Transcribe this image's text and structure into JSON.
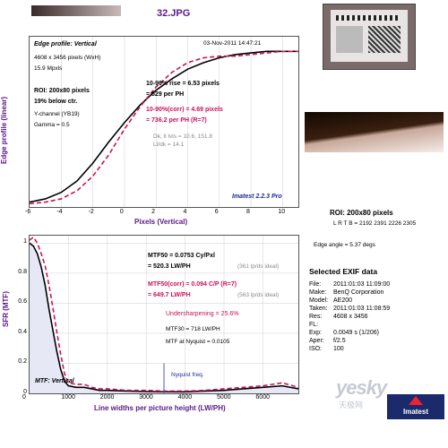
{
  "page_title": "32.JPG",
  "colors": {
    "purple": "#5b1a86",
    "magenta": "#c8145a",
    "grey": "#8a8a8a",
    "panel_blue": "#e6e8f6"
  },
  "edge_profile": {
    "header": "Edge profile: Vertical",
    "date": "03-Nov-2011 14:47:21",
    "info": [
      "4608 x 3456 pixels (WxH)",
      "15.9 Mpxls"
    ],
    "roi": "ROI: 200x80 pixels",
    "below": "19% below ctr.",
    "channel": "Y-channel  (YB19)",
    "gamma": "Gamma = 0.5",
    "rise": "10-90% rise = 6.53 pixels",
    "rise_ph": "= 529 per PH",
    "rise_corr": "10-90%(corr) = 4.69 pixels",
    "rise_corr_ph": "= 736.2 per PH  (R=7)",
    "dk": "Dk, lt lvls = 10.6, 151.8",
    "ltdk": "Lt/dk = 14.1",
    "imatest": "Imatest 2.2.3 Pro",
    "ylabel": "Edge profile (linear)",
    "xlabel": "Pixels (Vertical)",
    "xticks": [
      "-6",
      "-4",
      "-2",
      "0",
      "2",
      "4",
      "6",
      "8",
      "10"
    ]
  },
  "mtf": {
    "mtf50": "MTF50 = 0.0753 Cy/Pxl",
    "mtf50_lw": "= 520.3 LW/PH",
    "mtf50_ideal": "(361 lp/ds ideal)",
    "mtf50corr": "MTF50(corr) = 0.094 C/P  (R=7)",
    "mtf50corr_lw": "= 649.7 LW/PH",
    "mtf50corr_ideal": "(563 lp/ds ideal)",
    "undersharp": "Undersharpening = 25.6%",
    "mtf30": "MTF30 = 718 LW/PH",
    "nyq": "MTF at Nyquist = 0.0105",
    "nyq_label": "Nyquist freq.",
    "footer": "MTF: Vertical",
    "ylabel": "SFR (MTF)",
    "xlabel": "Line widths per picture height (LW/PH)",
    "xticks": [
      "0",
      "1000",
      "2000",
      "3000",
      "4000",
      "5000",
      "6000"
    ],
    "yticks": [
      "0",
      "0.2",
      "0.4",
      "0.6",
      "0.8",
      "1"
    ]
  },
  "right_panel": {
    "roi_title": "ROI: 200x80 pixels",
    "lrtb": "L R T B = 2192 2391   2226 2305",
    "edge_angle": "Edge angle = 5.37 degs",
    "exif_title": "Selected EXIF data",
    "exif": [
      [
        "File:",
        "2011:01:03 11:09:00"
      ],
      [
        "Make:",
        "BenQ Corporation"
      ],
      [
        "Model:",
        "AE200"
      ],
      [
        "Taken:",
        "2011:01:03 11:08:59"
      ],
      [
        "Res:",
        "4608 x 3456"
      ],
      [
        "FL:",
        ""
      ],
      [
        "Exp:",
        "0.0049 s  (1/206)"
      ],
      [
        "Aper:",
        "f/2.5"
      ],
      [
        "ISO:",
        "100"
      ]
    ],
    "watermark": "yesky",
    "watermark_sub": "天极网",
    "badge": "Imatest"
  },
  "chart_data": [
    {
      "type": "line",
      "title": "Edge profile: Vertical",
      "xlabel": "Pixels (Vertical)",
      "ylabel": "Edge profile (linear)",
      "xlim": [
        -6,
        11
      ],
      "series": [
        {
          "name": "10-90% rise",
          "x": [
            -6,
            -5,
            -4,
            -3,
            -2,
            -1,
            0,
            1,
            2,
            3,
            4,
            5,
            6,
            7,
            8,
            9,
            10,
            11
          ],
          "values": [
            0.03,
            0.05,
            0.09,
            0.16,
            0.27,
            0.4,
            0.52,
            0.63,
            0.72,
            0.79,
            0.85,
            0.89,
            0.92,
            0.94,
            0.95,
            0.96,
            0.96,
            0.96
          ]
        },
        {
          "name": "10-90%(corr)",
          "x": [
            -6,
            -5,
            -4,
            -3,
            -2,
            -1,
            0,
            1,
            2,
            3,
            4,
            5,
            6,
            7,
            8,
            9,
            10,
            11
          ],
          "values": [
            0.02,
            0.03,
            0.05,
            0.1,
            0.19,
            0.32,
            0.48,
            0.62,
            0.74,
            0.83,
            0.89,
            0.92,
            0.93,
            0.93,
            0.94,
            0.95,
            0.96,
            0.96
          ]
        }
      ],
      "grid": true
    },
    {
      "type": "line",
      "title": "MTF: Vertical",
      "xlabel": "Line widths per picture height (LW/PH)",
      "ylabel": "SFR (MTF)",
      "xlim": [
        0,
        6912
      ],
      "ylim": [
        0,
        1.05
      ],
      "series": [
        {
          "name": "MTF50",
          "x": [
            0,
            100,
            200,
            300,
            400,
            500,
            600,
            700,
            800,
            900,
            1000,
            1200,
            1400,
            1600,
            1800,
            2000,
            2500,
            3000,
            3456,
            4000,
            4500,
            5000,
            5500,
            6000,
            6500,
            6912
          ],
          "values": [
            1.0,
            0.98,
            0.93,
            0.84,
            0.72,
            0.56,
            0.42,
            0.28,
            0.16,
            0.08,
            0.05,
            0.04,
            0.04,
            0.03,
            0.02,
            0.02,
            0.015,
            0.012,
            0.0105,
            0.01,
            0.015,
            0.02,
            0.03,
            0.04,
            0.05,
            0.03
          ]
        },
        {
          "name": "MTF50(corr)",
          "x": [
            0,
            100,
            200,
            300,
            400,
            500,
            600,
            700,
            800,
            900,
            1000,
            1200,
            1400,
            1600,
            1800,
            2000,
            2500,
            3000,
            3456,
            4000,
            4500,
            5000,
            5500,
            6000,
            6500,
            6912
          ],
          "values": [
            1.02,
            1.04,
            1.0,
            0.93,
            0.85,
            0.72,
            0.57,
            0.41,
            0.26,
            0.13,
            0.07,
            0.06,
            0.06,
            0.04,
            0.03,
            0.03,
            0.02,
            0.02,
            0.015,
            0.015,
            0.02,
            0.03,
            0.04,
            0.05,
            0.07,
            0.04
          ]
        }
      ],
      "grid": true
    }
  ]
}
